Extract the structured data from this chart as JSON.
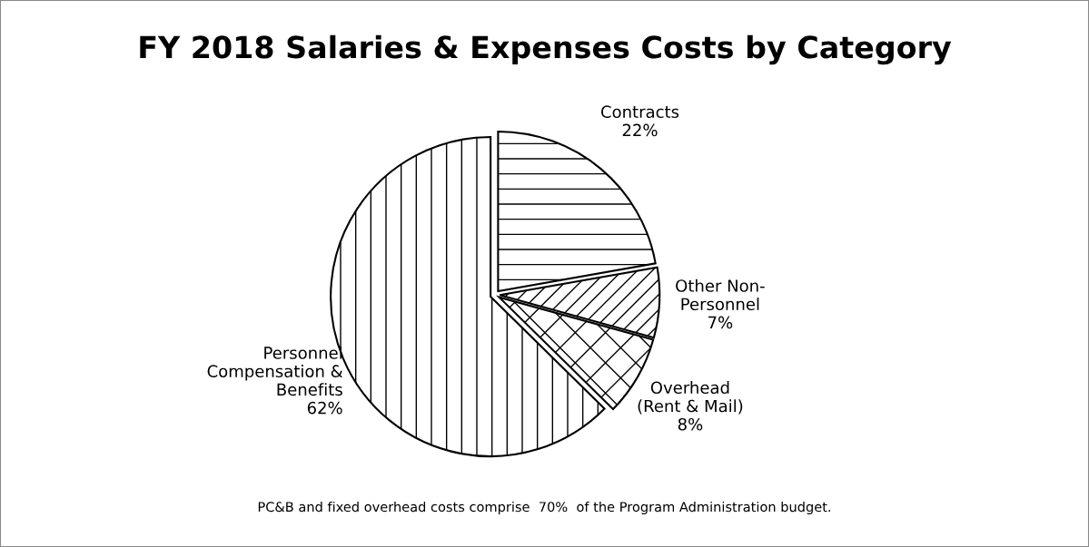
{
  "chart_data": {
    "type": "pie",
    "title": "FY 2018 Salaries & Expenses Costs by Category",
    "categories": [
      "Contracts",
      "Other Non-\nPersonnel",
      "Overhead\n(Rent & Mail)",
      "Personnel\nCompensation &\nBenefits"
    ],
    "values": [
      22,
      7,
      8,
      62
    ],
    "value_labels": [
      "22%",
      "7%",
      "8%",
      "62%"
    ],
    "colors": [
      "#ffffff",
      "#ffffff",
      "#ffffff",
      "#ffffff"
    ],
    "annotations": [
      "PC&B and fixed overhead costs comprise  70%  of the Program Administration budget."
    ]
  }
}
